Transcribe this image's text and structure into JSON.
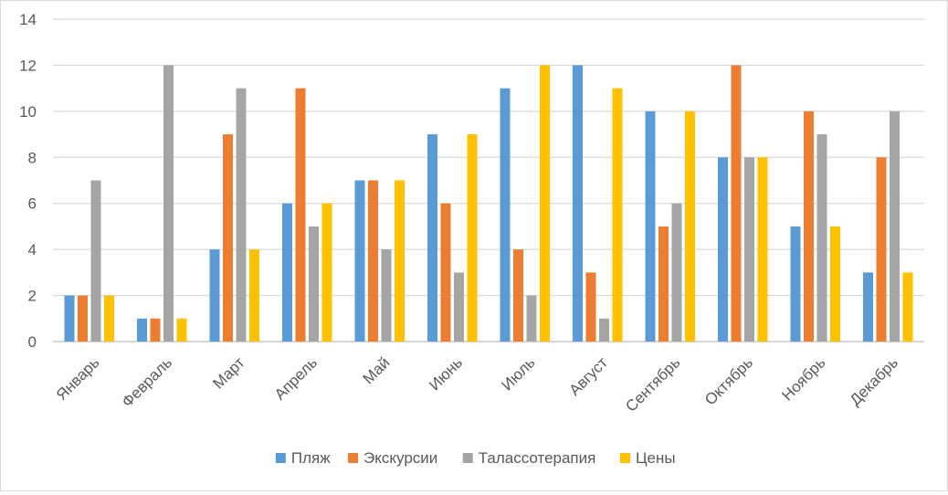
{
  "chart_data": {
    "type": "bar",
    "categories": [
      "Январь",
      "Февраль",
      "Март",
      "Апрель",
      "Май",
      "Июнь",
      "Июль",
      "Август",
      "Сентябрь",
      "Октябрь",
      "Ноябрь",
      "Декабрь"
    ],
    "series": [
      {
        "name": "Пляж",
        "color": "#5b9bd5",
        "values": [
          2,
          1,
          4,
          6,
          7,
          9,
          11,
          12,
          10,
          8,
          5,
          3
        ]
      },
      {
        "name": "Экскурсии",
        "color": "#ed7d31",
        "values": [
          2,
          1,
          9,
          11,
          7,
          6,
          4,
          3,
          5,
          12,
          10,
          8
        ]
      },
      {
        "name": "Талассотерапия",
        "color": "#a5a5a5",
        "values": [
          7,
          12,
          11,
          5,
          4,
          3,
          2,
          1,
          6,
          8,
          9,
          10
        ]
      },
      {
        "name": "Цены",
        "color": "#ffc000",
        "values": [
          2,
          1,
          4,
          6,
          7,
          9,
          12,
          11,
          10,
          8,
          5,
          3
        ]
      }
    ],
    "yticks": [
      0,
      2,
      4,
      6,
      8,
      10,
      12,
      14
    ],
    "ylim": [
      0,
      14
    ],
    "grid": true,
    "legend_position": "bottom",
    "title": "",
    "xlabel": "",
    "ylabel": ""
  }
}
